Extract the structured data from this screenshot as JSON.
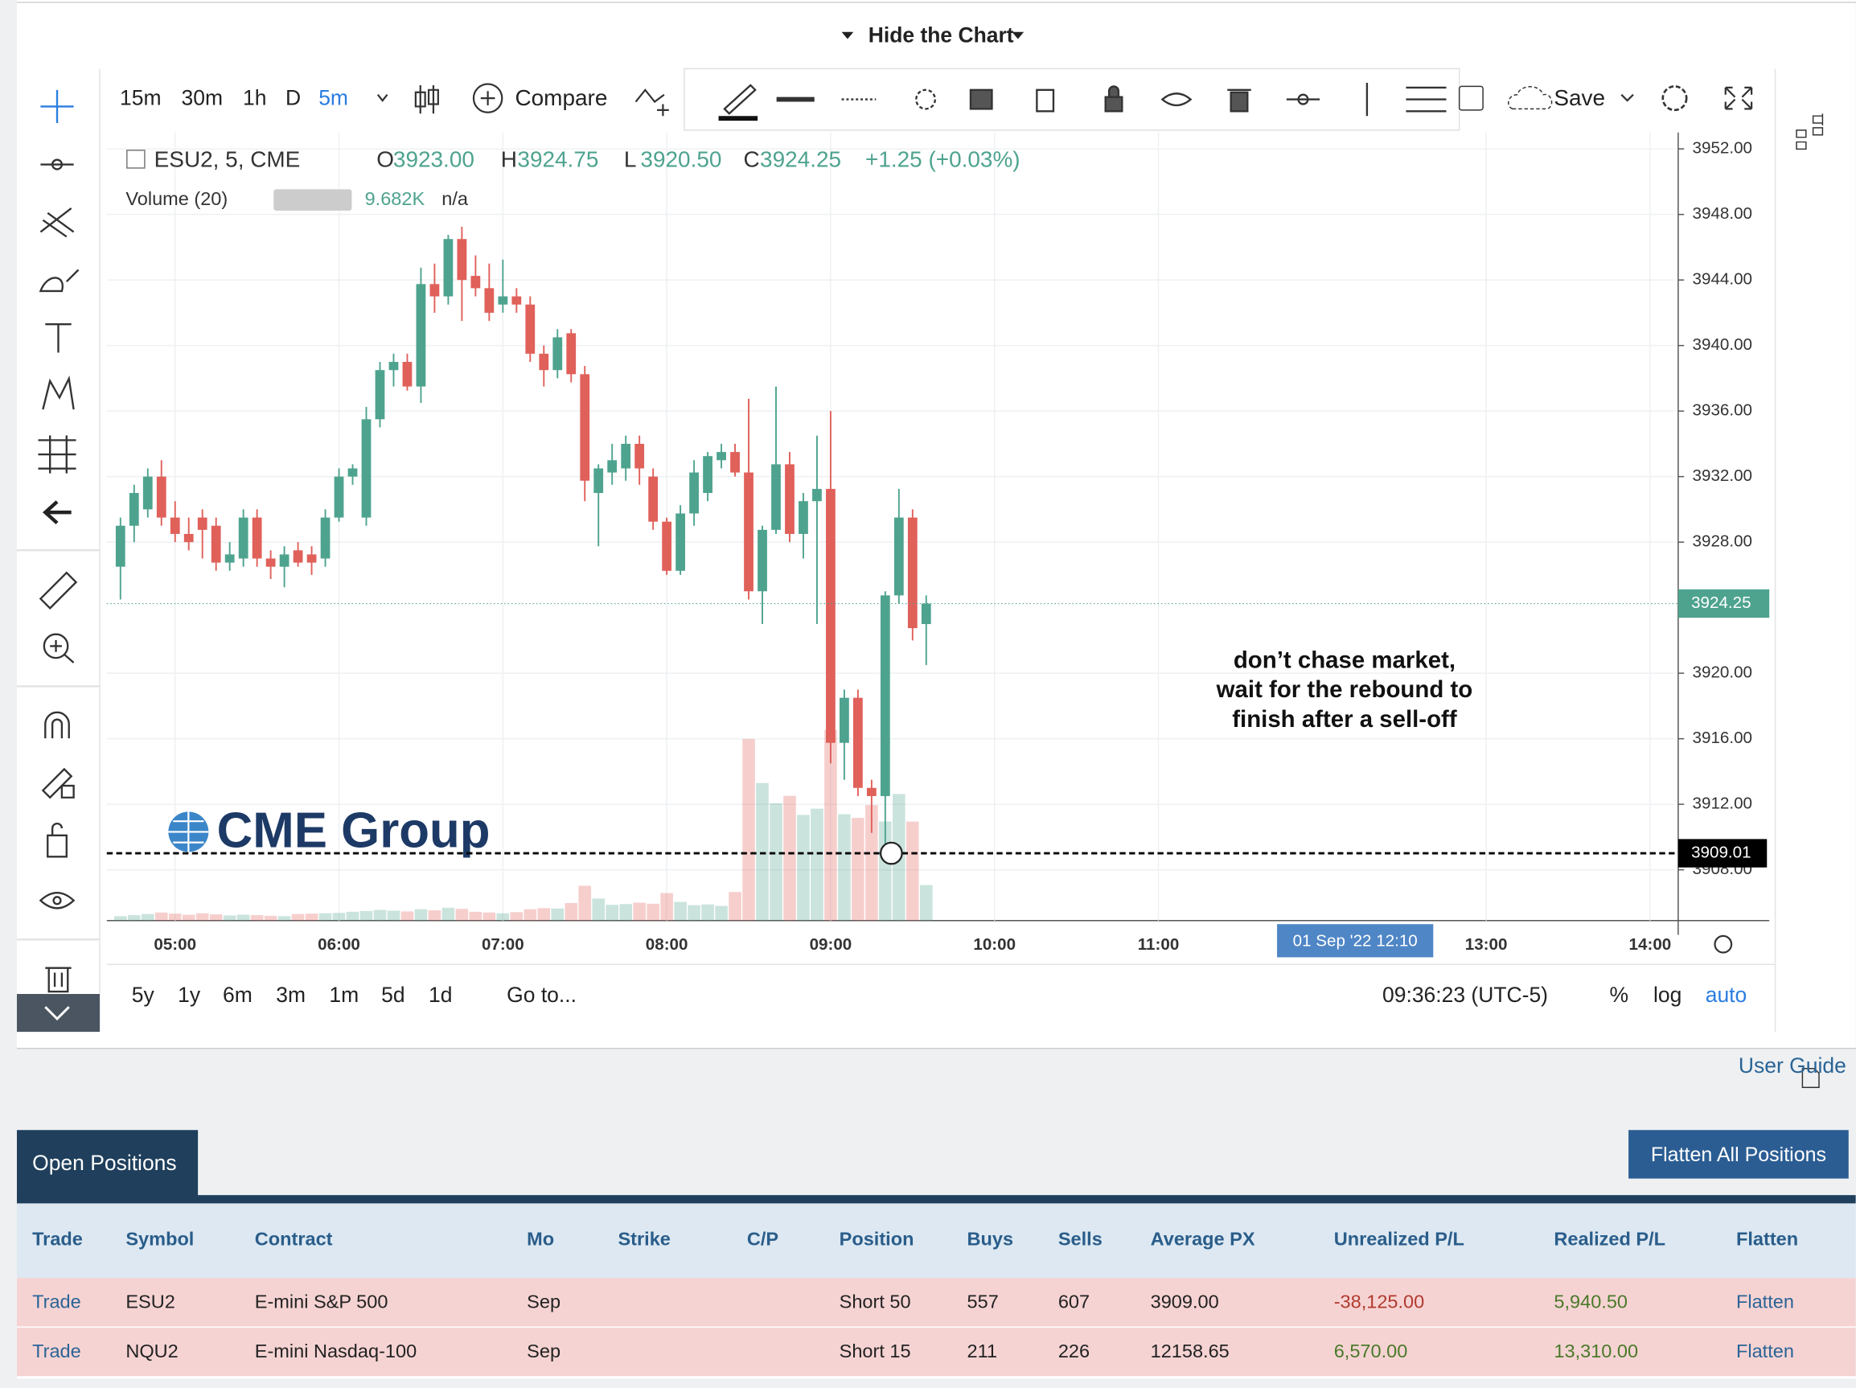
{
  "header": {
    "toggle": "Hide the Chart"
  },
  "toolbar": {
    "intervals": [
      "15m",
      "30m",
      "1h",
      "D",
      "5m"
    ],
    "compare": "Compare",
    "save": "Save"
  },
  "chart_data": {
    "type": "candlestick",
    "symbol": "ESU2, 5, CME",
    "ohlc_legend": [
      {
        "key": "O",
        "value": "3923.00"
      },
      {
        "key": "H",
        "value": "3924.75"
      },
      {
        "key": "L",
        "value": "3920.50"
      },
      {
        "key": "C",
        "value": "3924.25"
      }
    ],
    "change": "+1.25 (+0.03%)",
    "volume_label": "Volume (20)",
    "volume_value": "9.682K",
    "volume_na": "n/a",
    "x": [
      "04:40",
      "04:45",
      "04:50",
      "04:55",
      "05:00",
      "05:05",
      "05:10",
      "05:15",
      "05:20",
      "05:25",
      "05:30",
      "05:35",
      "05:40",
      "05:45",
      "05:50",
      "05:55",
      "06:00",
      "06:05",
      "06:10",
      "06:15",
      "06:20",
      "06:25",
      "06:30",
      "06:35",
      "06:40",
      "06:45",
      "06:50",
      "06:55",
      "07:00",
      "07:05",
      "07:10",
      "07:15",
      "07:20",
      "07:25",
      "07:30",
      "07:35",
      "07:40",
      "07:45",
      "07:50",
      "07:55",
      "08:00",
      "08:05",
      "08:10",
      "08:15",
      "08:20",
      "08:25",
      "08:30",
      "08:35",
      "08:40",
      "08:45",
      "08:50",
      "08:55",
      "09:00",
      "09:05",
      "09:10",
      "09:15",
      "09:20",
      "09:25",
      "09:30",
      "09:35"
    ],
    "open": [
      3926.5,
      3929.0,
      3930.0,
      3932.0,
      3929.5,
      3928.5,
      3929.5,
      3929.0,
      3926.75,
      3927.0,
      3929.5,
      3927.0,
      3926.5,
      3927.5,
      3927.25,
      3927.0,
      3929.5,
      3932.0,
      3929.5,
      3935.5,
      3938.5,
      3939.0,
      3937.5,
      3943.75,
      3943.0,
      3946.5,
      3944.25,
      3943.5,
      3942.5,
      3943.0,
      3942.5,
      3939.5,
      3938.5,
      3940.75,
      3938.25,
      3931.0,
      3932.25,
      3932.5,
      3934.0,
      3932.0,
      3929.25,
      3926.25,
      3929.75,
      3931.0,
      3933.0,
      3933.5,
      3932.25,
      3925.0,
      3928.75,
      3932.75,
      3928.5,
      3930.5,
      3931.25,
      3915.75,
      3918.5,
      3913.0,
      3912.5,
      3924.75,
      3929.5,
      3923.0
    ],
    "high": [
      3929.5,
      3931.5,
      3932.5,
      3933.0,
      3930.5,
      3929.5,
      3930.0,
      3929.5,
      3928.0,
      3930.0,
      3930.0,
      3927.5,
      3927.75,
      3928.0,
      3927.75,
      3930.0,
      3932.5,
      3932.75,
      3936.25,
      3939.0,
      3939.5,
      3939.5,
      3944.75,
      3945.0,
      3946.75,
      3947.25,
      3945.5,
      3945.0,
      3945.25,
      3943.5,
      3943.0,
      3940.0,
      3941.0,
      3941.0,
      3938.75,
      3932.75,
      3934.0,
      3934.5,
      3934.5,
      3932.5,
      3929.5,
      3930.25,
      3933.0,
      3933.5,
      3934.0,
      3934.0,
      3936.75,
      3929.0,
      3937.5,
      3933.5,
      3931.0,
      3934.5,
      3936.0,
      3919.0,
      3919.0,
      3913.5,
      3925.0,
      3931.25,
      3930.0,
      3924.75
    ],
    "low": [
      3924.5,
      3928.0,
      3929.5,
      3929.0,
      3928.0,
      3927.5,
      3927.0,
      3926.25,
      3926.25,
      3926.5,
      3926.5,
      3925.75,
      3925.25,
      3926.5,
      3926.0,
      3926.5,
      3929.25,
      3931.5,
      3929.0,
      3935.0,
      3937.5,
      3937.25,
      3936.5,
      3942.0,
      3942.5,
      3941.5,
      3943.0,
      3941.5,
      3942.0,
      3942.0,
      3939.0,
      3937.5,
      3938.0,
      3937.75,
      3930.5,
      3927.75,
      3931.5,
      3931.75,
      3931.5,
      3928.75,
      3926.0,
      3926.0,
      3929.0,
      3930.5,
      3932.5,
      3932.0,
      3924.5,
      3923.0,
      3928.5,
      3928.0,
      3927.0,
      3923.0,
      3914.5,
      3913.5,
      3912.5,
      3910.25,
      3909.5,
      3924.25,
      3922.0,
      3920.5
    ],
    "close": [
      3929.0,
      3931.0,
      3932.0,
      3929.5,
      3928.5,
      3928.0,
      3928.75,
      3926.75,
      3927.25,
      3929.5,
      3927.0,
      3926.5,
      3927.25,
      3926.75,
      3926.75,
      3929.5,
      3932.0,
      3932.5,
      3935.5,
      3938.5,
      3939.0,
      3937.5,
      3943.75,
      3943.0,
      3946.5,
      3944.0,
      3943.5,
      3942.0,
      3943.0,
      3942.5,
      3939.5,
      3938.5,
      3940.5,
      3938.25,
      3931.75,
      3932.5,
      3933.0,
      3934.0,
      3932.5,
      3929.25,
      3926.25,
      3929.75,
      3932.25,
      3933.25,
      3933.5,
      3932.25,
      3925.0,
      3928.75,
      3932.75,
      3928.5,
      3930.5,
      3931.25,
      3915.75,
      3918.5,
      3913.0,
      3912.5,
      3924.75,
      3929.5,
      3922.75,
      3924.25
    ],
    "volume": [
      1.2,
      1.5,
      1.8,
      2.2,
      1.9,
      1.6,
      2.0,
      1.7,
      1.4,
      1.6,
      1.5,
      1.3,
      1.2,
      1.8,
      1.9,
      2.0,
      2.1,
      2.4,
      2.6,
      2.9,
      2.7,
      2.5,
      3.1,
      2.8,
      3.5,
      3.2,
      2.4,
      2.2,
      2.0,
      2.3,
      3.1,
      3.4,
      3.3,
      4.8,
      9.5,
      6.0,
      4.3,
      4.5,
      4.9,
      4.6,
      7.5,
      5.1,
      4.2,
      4.4,
      4.0,
      7.8,
      49.5,
      37.5,
      32.0,
      34.0,
      28.8,
      30.5,
      52.0,
      29.0,
      28.0,
      31.5,
      27.0,
      34.5,
      27.0,
      9.682
    ],
    "up_color": "#4ea38f",
    "down_color": "#e0605a",
    "ylim": [
      3904.9,
      3953.0
    ],
    "yticks": [
      {
        "value": 3952,
        "label": "3952.00"
      },
      {
        "value": 3948,
        "label": "3948.00"
      },
      {
        "value": 3944,
        "label": "3944.00"
      },
      {
        "value": 3940,
        "label": "3940.00"
      },
      {
        "value": 3936,
        "label": "3936.00"
      },
      {
        "value": 3932,
        "label": "3932.00"
      },
      {
        "value": 3928,
        "label": "3928.00"
      },
      {
        "value": 3920,
        "label": "3920.00"
      },
      {
        "value": 3916,
        "label": "3916.00"
      },
      {
        "value": 3912,
        "label": "3912.00"
      },
      {
        "value": 3908,
        "label": "3908.00"
      }
    ],
    "xlim": [
      "04:35",
      "14:09"
    ],
    "xticks": [
      "05:00",
      "06:00",
      "07:00",
      "08:00",
      "09:00",
      "10:00",
      "11:00",
      "13:00",
      "14:00"
    ],
    "grid": true,
    "last_price": 3924.25,
    "crosshair_price": 3909.01,
    "crosshair_time": "01 Sep '22   12:10",
    "annotation": [
      "don’t chase market,",
      "wait for the rebound to",
      "finish after a sell-off"
    ],
    "watermark": "CME Group"
  },
  "ranges": {
    "periods": [
      "5y",
      "1y",
      "6m",
      "3m",
      "1m",
      "5d",
      "1d"
    ],
    "goto": "Go to...",
    "clock": "09:36:23 (UTC-5)",
    "scale_options": [
      "%",
      "log",
      "auto"
    ]
  },
  "user_guide": "User Guide",
  "positions": {
    "tab": "Open Positions",
    "flatten_all": "Flatten All Positions",
    "columns": [
      "Trade",
      "Symbol",
      "Contract",
      "Mo",
      "Strike",
      "C/P",
      "Position",
      "Buys",
      "Sells",
      "Average PX",
      "Unrealized P/L",
      "Realized P/L",
      "Flatten"
    ],
    "rows": [
      [
        "Trade",
        "ESU2",
        "E-mini S&P 500",
        "Sep",
        null,
        null,
        "Short 50",
        "557",
        "607",
        "3909.00",
        "-38,125.00",
        "5,940.50",
        "Flatten"
      ],
      [
        "Trade",
        "NQU2",
        "E-mini Nasdaq-100",
        "Sep",
        null,
        null,
        "Short 15",
        "211",
        "226",
        "12158.65",
        "6,570.00",
        "13,310.00",
        "Flatten"
      ]
    ]
  }
}
